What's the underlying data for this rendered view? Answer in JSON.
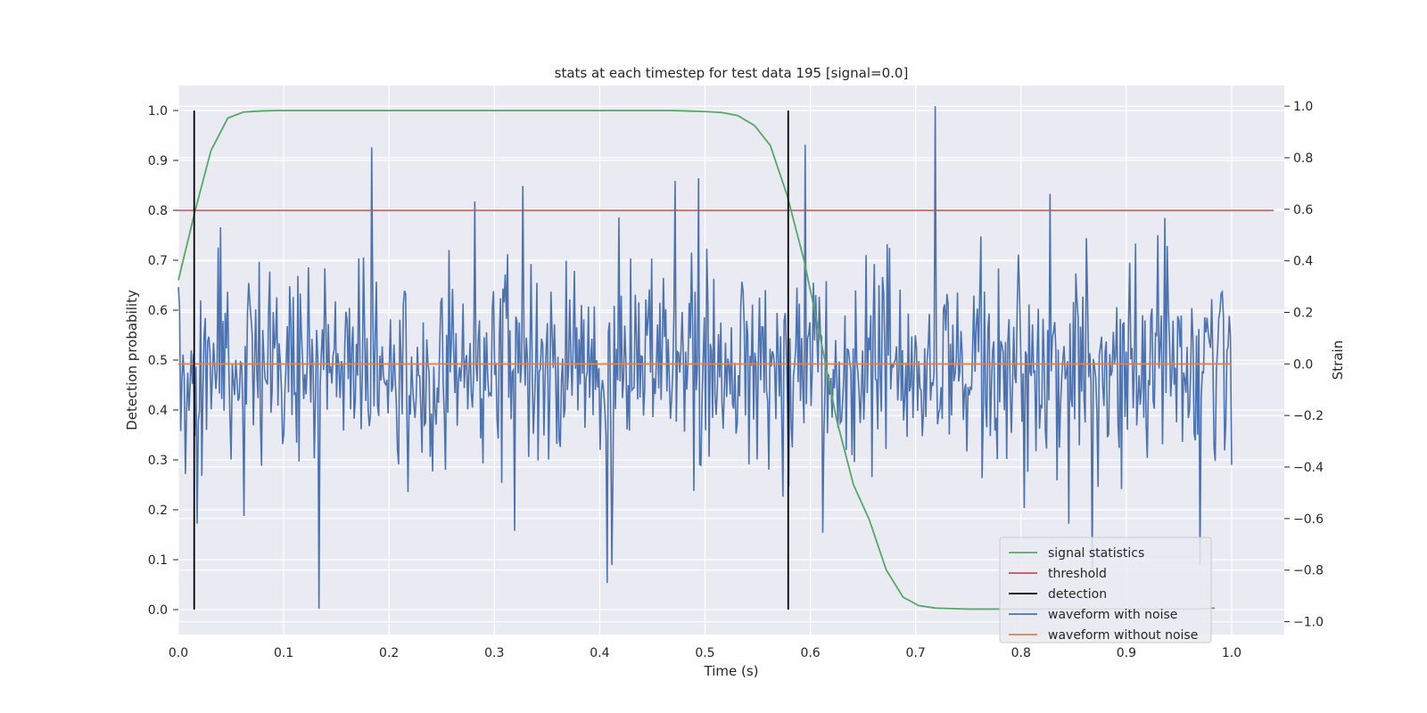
{
  "chart_data": {
    "type": "line",
    "title": "stats at each timestep for test data 195 [signal=0.0]",
    "xlabel": "Time (s)",
    "ylabel_left": "Detection probability",
    "ylabel_right": "Strain",
    "xlim": [
      0.0,
      1.05
    ],
    "ylim_left": [
      -0.05,
      1.05
    ],
    "ylim_right": [
      -1.05,
      1.08
    ],
    "x_ticks": [
      0.0,
      0.1,
      0.2,
      0.3,
      0.4,
      0.5,
      0.6,
      0.7,
      0.8,
      0.9,
      1.0
    ],
    "x_tick_labels": [
      "0.0",
      "0.1",
      "0.2",
      "0.3",
      "0.4",
      "0.5",
      "0.6",
      "0.7",
      "0.8",
      "0.9",
      "1.0"
    ],
    "y_left_ticks": [
      0.0,
      0.1,
      0.2,
      0.3,
      0.4,
      0.5,
      0.6,
      0.7,
      0.8,
      0.9,
      1.0
    ],
    "y_left_tick_labels": [
      "0.0",
      "0.1",
      "0.2",
      "0.3",
      "0.4",
      "0.5",
      "0.6",
      "0.7",
      "0.8",
      "0.9",
      "1.0"
    ],
    "y_right_ticks": [
      -1.0,
      -0.8,
      -0.6,
      -0.4,
      -0.2,
      0.0,
      0.2,
      0.4,
      0.6,
      0.8,
      1.0
    ],
    "y_right_tick_labels": [
      "−1.0",
      "−0.8",
      "−0.6",
      "−0.4",
      "−0.2",
      "0.0",
      "0.2",
      "0.4",
      "0.6",
      "0.8",
      "1.0"
    ],
    "grid": true,
    "legend_position": "lower-right",
    "series": [
      {
        "name": "signal statistics",
        "axis": "left",
        "color": "#55a868",
        "x": [
          0.0,
          0.016,
          0.031,
          0.047,
          0.062,
          0.078,
          0.094,
          0.109,
          0.125,
          0.141,
          0.156,
          0.172,
          0.188,
          0.203,
          0.219,
          0.234,
          0.25,
          0.266,
          0.281,
          0.297,
          0.312,
          0.328,
          0.344,
          0.359,
          0.375,
          0.391,
          0.406,
          0.422,
          0.438,
          0.453,
          0.469,
          0.484,
          0.5,
          0.516,
          0.531,
          0.547,
          0.562,
          0.578,
          0.594,
          0.609,
          0.625,
          0.641,
          0.656,
          0.672,
          0.688,
          0.703,
          0.719,
          0.734,
          0.75,
          0.766,
          0.781,
          0.797,
          0.812,
          0.828,
          0.844,
          0.859,
          0.875,
          0.891,
          0.906,
          0.922,
          0.938,
          0.953,
          0.969,
          0.984
        ],
        "y": [
          0.66,
          0.8,
          0.92,
          0.985,
          0.997,
          0.999,
          1.0,
          1.0,
          1.0,
          1.0,
          1.0,
          1.0,
          1.0,
          1.0,
          1.0,
          1.0,
          1.0,
          1.0,
          1.0,
          1.0,
          1.0,
          1.0,
          1.0,
          1.0,
          1.0,
          1.0,
          1.0,
          1.0,
          1.0,
          1.0,
          1.0,
          0.999,
          0.998,
          0.996,
          0.99,
          0.97,
          0.93,
          0.83,
          0.7,
          0.55,
          0.38,
          0.25,
          0.18,
          0.08,
          0.025,
          0.008,
          0.003,
          0.002,
          0.001,
          0.001,
          0.001,
          0.001,
          0.001,
          0.001,
          0.001,
          0.001,
          0.001,
          0.001,
          0.001,
          0.001,
          0.001,
          0.001,
          0.001,
          0.003
        ]
      },
      {
        "name": "threshold",
        "axis": "left",
        "color": "#c44e52",
        "x": [
          0.0,
          1.04
        ],
        "y": [
          0.8,
          0.8
        ]
      },
      {
        "name": "detection",
        "axis": "left",
        "color": "#000000",
        "type": "vlines",
        "x": [
          0.015,
          0.579
        ],
        "ymin": 0.0,
        "ymax": 1.0
      },
      {
        "name": "waveform with noise",
        "axis": "right",
        "color": "#4c72b0",
        "x_range": [
          0.0,
          1.0
        ],
        "points": 900,
        "amplitude_range": [
          -0.95,
          1.0
        ],
        "y_peaks": [
          [
            0.134,
            -0.95
          ],
          [
            0.183,
            0.84
          ],
          [
            0.407,
            -0.85
          ],
          [
            0.412,
            -0.78
          ],
          [
            0.595,
            0.85
          ],
          [
            0.719,
            1.0
          ],
          [
            0.327,
            0.69
          ],
          [
            0.281,
            0.63
          ],
          [
            0.472,
            0.71
          ],
          [
            0.494,
            0.72
          ],
          [
            0.828,
            0.66
          ],
          [
            0.018,
            -0.62
          ],
          [
            0.062,
            -0.59
          ],
          [
            0.845,
            -0.62
          ],
          [
            0.868,
            -0.79
          ],
          [
            0.97,
            -0.78
          ]
        ]
      },
      {
        "name": "waveform without noise",
        "axis": "right",
        "color": "#dd8452",
        "x": [
          0.0,
          1.0
        ],
        "y": [
          0.0,
          0.0
        ]
      }
    ]
  }
}
